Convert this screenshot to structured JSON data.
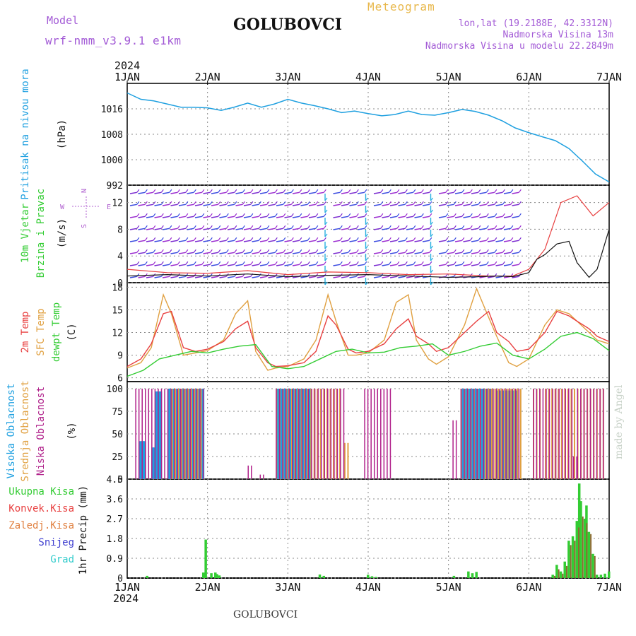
{
  "header": {
    "model_label": "Model",
    "model_run": "wrf-nmm_v3.9.1 e1km",
    "station": "GOLUBOVCI",
    "product": "Meteogram",
    "lonlat": "lon,lat (19.2188E, 42.3312N)",
    "elevation": "Nadmorska Visina 13m",
    "model_elevation": "Nadmorska Visina u modelu 22.2849m",
    "year_top": "2024",
    "year_bottom": "2024",
    "footer_station": "GOLUBOVCI",
    "made_by": "made by Angel"
  },
  "colors": {
    "pressure": "#1fa0e0",
    "wind_speed": "#111111",
    "wind_gust": "#e84040",
    "t2m": "#e84040",
    "sfc": "#e0a040",
    "dewpt": "#33cc33",
    "cloud_high": "#1fa0e0",
    "cloud_mid": "#e0a040",
    "cloud_low": "#b0208a",
    "rain_total": "#33cc33",
    "rain_conv": "#e84040",
    "rain_frozen": "#e08040",
    "snow": "#4040d0",
    "hail": "#33cccc",
    "grid": "#888888"
  },
  "chart_data": [
    {
      "type": "line",
      "panel": "pressure",
      "ylabel_parts": [
        "Pritisak na nivou mora",
        "(hPa)"
      ],
      "yticks": [
        "1016",
        "1008",
        "1000",
        "992"
      ],
      "ylim": [
        992,
        1024
      ],
      "x_days": [
        0,
        0.17,
        0.33,
        0.5,
        0.67,
        0.83,
        1,
        1.17,
        1.33,
        1.5,
        1.67,
        1.83,
        2,
        2.17,
        2.33,
        2.5,
        2.67,
        2.83,
        3,
        3.17,
        3.33,
        3.5,
        3.67,
        3.83,
        4,
        4.17,
        4.33,
        4.5,
        4.67,
        4.83,
        5,
        5.17,
        5.33,
        5.5,
        5.67,
        5.83,
        6
      ],
      "values": [
        1021,
        1019,
        1018.5,
        1017.5,
        1016.5,
        1016.5,
        1016.3,
        1015.5,
        1016.5,
        1017.8,
        1016.5,
        1017.5,
        1019,
        1017.8,
        1017,
        1016,
        1014.8,
        1015.3,
        1014.5,
        1013.8,
        1014.2,
        1015.3,
        1014.2,
        1014.0,
        1014.8,
        1015.8,
        1015.2,
        1014.0,
        1012.2,
        1010.0,
        1008.5,
        1007.2,
        1006.0,
        1003.5,
        999.5,
        995.5,
        993.0
      ]
    },
    {
      "type": "line",
      "panel": "wind",
      "ylabel_parts": [
        "10m Vjetar",
        "Brzina i Pravac",
        "(m/s)"
      ],
      "compass": {
        "n": "N",
        "s": "S",
        "e": "E",
        "w": "W"
      },
      "yticks": [
        "0",
        "4",
        "8",
        "12"
      ],
      "ylim": [
        0,
        14.6
      ],
      "series": [
        {
          "name": "speed",
          "x_days": [
            0,
            0.5,
            1,
            1.5,
            2,
            2.5,
            3,
            3.5,
            4,
            4.4,
            4.6,
            4.8,
            5,
            5.1,
            5.2,
            5.35,
            5.5,
            5.6,
            5.75,
            5.85,
            6
          ],
          "values": [
            1.0,
            1.2,
            1.0,
            1.3,
            0.9,
            1.1,
            1.2,
            1.0,
            0.8,
            0.9,
            1.0,
            0.9,
            1.5,
            3.5,
            4.2,
            5.8,
            6.2,
            3.0,
            0.8,
            2.0,
            8.0
          ]
        },
        {
          "name": "gust",
          "x_days": [
            0,
            0.5,
            1,
            1.5,
            2,
            2.5,
            3,
            3.5,
            4,
            4.5,
            4.8,
            5,
            5.2,
            5.4,
            5.6,
            5.8,
            6
          ],
          "values": [
            2.0,
            1.5,
            1.4,
            1.8,
            1.2,
            1.6,
            1.5,
            1.2,
            1.3,
            1.0,
            1.0,
            2.0,
            5.0,
            12.0,
            13.0,
            10.0,
            12.0
          ]
        }
      ]
    },
    {
      "type": "line",
      "panel": "temperature",
      "ylabel_parts": [
        "2m Temp",
        "SFC Temp",
        "dewpt Temp",
        "(C)"
      ],
      "yticks": [
        "6",
        "9",
        "12",
        "15",
        "18"
      ],
      "ylim": [
        5.5,
        18.6
      ],
      "series": [
        {
          "name": "2m Temp",
          "x_days": [
            0,
            0.17,
            0.3,
            0.45,
            0.55,
            0.7,
            0.85,
            1,
            1.2,
            1.35,
            1.5,
            1.6,
            1.75,
            1.85,
            2,
            2.2,
            2.35,
            2.5,
            2.6,
            2.75,
            2.85,
            3,
            3.2,
            3.35,
            3.5,
            3.6,
            3.75,
            3.85,
            4,
            4.2,
            4.35,
            4.5,
            4.6,
            4.75,
            4.85,
            5,
            5.2,
            5.35,
            5.5,
            5.6,
            5.75,
            5.85,
            6
          ],
          "values": [
            7.5,
            8.5,
            10.5,
            14.5,
            14.8,
            10,
            9.5,
            9.8,
            10.8,
            12.5,
            13.5,
            10.0,
            8.0,
            7.5,
            7.6,
            8.0,
            9.5,
            14.2,
            13.0,
            9.8,
            9.3,
            9.5,
            10.5,
            12.5,
            13.8,
            11.5,
            10.5,
            9.5,
            10.0,
            12.0,
            13.5,
            14.8,
            12.0,
            10.8,
            9.5,
            9.8,
            12.0,
            14.8,
            14.2,
            13.5,
            12.5,
            11.5,
            10.8
          ]
        },
        {
          "name": "SFC Temp",
          "x_days": [
            0,
            0.17,
            0.3,
            0.45,
            0.55,
            0.7,
            0.85,
            1,
            1.2,
            1.35,
            1.5,
            1.6,
            1.75,
            1.85,
            2,
            2.2,
            2.35,
            2.5,
            2.6,
            2.75,
            2.85,
            3,
            3.2,
            3.35,
            3.5,
            3.6,
            3.75,
            3.85,
            4,
            4.2,
            4.35,
            4.5,
            4.6,
            4.75,
            4.85,
            5,
            5.2,
            5.35,
            5.5,
            5.6,
            5.75,
            5.85,
            6
          ],
          "values": [
            7.3,
            8.0,
            10.0,
            17.0,
            14.5,
            9.0,
            9.3,
            9.6,
            11.0,
            14.5,
            16.2,
            9.5,
            7.0,
            7.3,
            7.5,
            8.5,
            11.0,
            17.0,
            13.5,
            9.0,
            9.0,
            9.3,
            11.0,
            16.0,
            17.0,
            11.0,
            8.5,
            7.8,
            8.8,
            13.0,
            17.8,
            14.0,
            11.5,
            8.0,
            7.5,
            8.5,
            13.0,
            15.0,
            14.5,
            13.5,
            12.0,
            11.0,
            10.5
          ]
        },
        {
          "name": "dewpt Temp",
          "x_days": [
            0,
            0.2,
            0.4,
            0.6,
            0.8,
            1,
            1.2,
            1.4,
            1.6,
            1.8,
            2,
            2.2,
            2.4,
            2.6,
            2.8,
            3,
            3.2,
            3.4,
            3.6,
            3.8,
            4,
            4.2,
            4.4,
            4.6,
            4.8,
            5,
            5.2,
            5.4,
            5.6,
            5.8,
            6
          ],
          "values": [
            6.2,
            7.0,
            8.5,
            9.0,
            9.5,
            9.3,
            9.8,
            10.2,
            10.4,
            7.5,
            7.2,
            7.5,
            8.5,
            9.5,
            9.8,
            9.3,
            9.4,
            10.0,
            10.2,
            10.5,
            9.0,
            9.5,
            10.2,
            10.6,
            9.0,
            8.5,
            9.8,
            11.5,
            12.0,
            11.2,
            9.6
          ]
        }
      ]
    },
    {
      "type": "bar",
      "panel": "clouds",
      "ylabel_parts": [
        "Visoka Oblacnost",
        "Srednja Oblacnost",
        "Niska Oblacnost",
        "(%)"
      ],
      "yticks": [
        "0",
        "25",
        "50",
        "75",
        "100"
      ],
      "ylim": [
        0,
        100
      ],
      "series": [
        {
          "name": "Visoka Oblacnost",
          "segments": [
            [
              0.15,
              0.2,
              42
            ],
            [
              0.3,
              0.35,
              35
            ],
            [
              0.35,
              0.4,
              97
            ],
            [
              0.5,
              0.95,
              100
            ],
            [
              1.85,
              2.25,
              100
            ],
            [
              2.15,
              2.2,
              10
            ],
            [
              4.15,
              4.55,
              100
            ],
            [
              4.6,
              4.85,
              98
            ]
          ]
        },
        {
          "name": "Srednja Oblacnost",
          "segments": [
            [
              0.55,
              0.95,
              100
            ],
            [
              1.85,
              2.0,
              100
            ],
            [
              2.0,
              2.65,
              100
            ],
            [
              2.7,
              2.75,
              40
            ],
            [
              4.15,
              4.4,
              100
            ],
            [
              4.45,
              4.9,
              100
            ],
            [
              5.05,
              5.15,
              100
            ],
            [
              5.2,
              5.95,
              100
            ]
          ]
        },
        {
          "name": "Niska Oblacnost",
          "segments": [
            [
              0.1,
              0.95,
              100
            ],
            [
              1.5,
              1.55,
              15
            ],
            [
              1.65,
              1.7,
              5
            ],
            [
              1.85,
              2.7,
              100
            ],
            [
              2.95,
              3.3,
              100
            ],
            [
              4.05,
              4.1,
              65
            ],
            [
              4.15,
              4.9,
              100
            ],
            [
              5.05,
              5.55,
              100
            ],
            [
              5.6,
              5.95,
              100
            ],
            [
              5.55,
              5.6,
              25
            ]
          ]
        }
      ]
    },
    {
      "type": "bar",
      "panel": "precip",
      "ylabel_parts": [
        "1hr Precip (mm)"
      ],
      "legend": [
        "Ukupna Kisa",
        "Konvek.Kisa",
        "Zaledj.Kisa",
        "Snijeg",
        "Grad"
      ],
      "yticks": [
        "0",
        "0.9",
        "1.8",
        "2.7",
        "3.6",
        "4.5"
      ],
      "ylim": [
        0,
        4.5
      ],
      "series": [
        {
          "name": "Ukupna Kisa",
          "x_days": [
            0.25,
            0.95,
            0.98,
            1.05,
            1.1,
            1.12,
            1.15,
            2.4,
            2.45,
            3.0,
            3.05,
            3.1,
            4.07,
            4.25,
            4.3,
            4.35,
            5.3,
            5.35,
            5.4,
            5.45,
            5.5,
            5.55,
            5.6,
            5.63,
            5.65,
            5.7,
            5.72,
            5.75,
            5.8,
            5.85,
            5.9,
            5.95,
            6.0
          ],
          "values": [
            0.1,
            0.25,
            1.75,
            0.22,
            0.25,
            0.18,
            0.12,
            0.16,
            0.1,
            0.15,
            0.08,
            0.05,
            0.1,
            0.3,
            0.22,
            0.28,
            0.15,
            0.6,
            0.3,
            0.75,
            1.7,
            1.9,
            2.6,
            4.3,
            3.5,
            2.7,
            3.3,
            2.1,
            1.1,
            0.15,
            0.15,
            0.2,
            0.3
          ]
        },
        {
          "name": "Konvek.Kisa",
          "x_days": [
            5.3,
            5.35,
            5.4,
            5.45,
            5.5,
            5.55,
            5.6,
            5.65,
            5.7,
            5.75,
            5.8
          ],
          "values": [
            0.1,
            0.4,
            0.2,
            0.55,
            1.5,
            1.7,
            2.3,
            2.8,
            2.5,
            2.0,
            1.0
          ]
        }
      ]
    }
  ],
  "x_axis": {
    "day_labels": [
      "1JAN",
      "2JAN",
      "3JAN",
      "4JAN",
      "5JAN",
      "6JAN",
      "7JAN"
    ]
  }
}
